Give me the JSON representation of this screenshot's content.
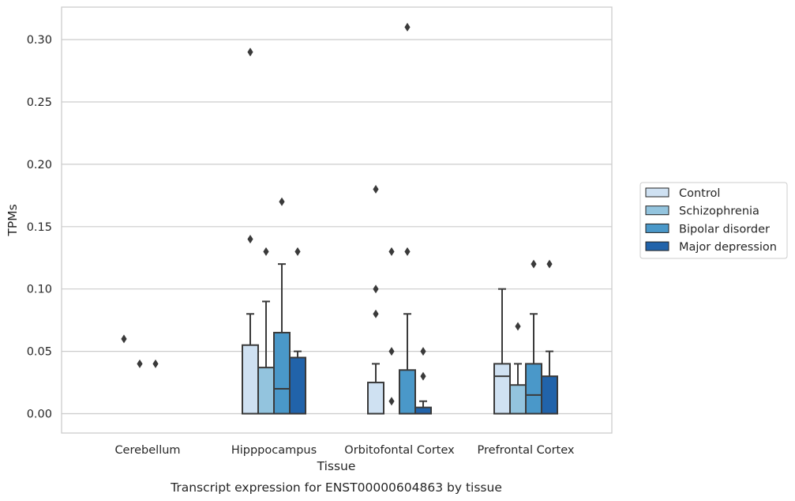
{
  "chart_data": {
    "type": "box",
    "caption": "Transcript expression for ENST00000604863 by tissue",
    "xlabel": "Tissue",
    "ylabel": "TPMs",
    "ylim": [
      -0.015,
      0.326
    ],
    "yticks": [
      0.0,
      0.05,
      0.1,
      0.15,
      0.2,
      0.25,
      0.3
    ],
    "ytick_labels": [
      "0.00",
      "0.05",
      "0.10",
      "0.15",
      "0.20",
      "0.25",
      "0.30"
    ],
    "grid": "horizontal",
    "legend_position": "right",
    "categories": [
      "Cerebellum",
      "Hipppocampus",
      "Orbitofontal Cortex",
      "Prefrontal Cortex"
    ],
    "series": [
      {
        "name": "Control",
        "color": "#cfe1f2",
        "boxes": [
          {
            "min": 0.0,
            "q1": 0.0,
            "median": 0.0,
            "q3": 0.0,
            "max": 0.0,
            "outliers": [
              0.06
            ]
          },
          {
            "min": 0.0,
            "q1": 0.0,
            "median": 0.0,
            "q3": 0.055,
            "max": 0.08,
            "outliers": [
              0.14,
              0.29
            ]
          },
          {
            "min": 0.0,
            "q1": 0.0,
            "median": 0.0,
            "q3": 0.025,
            "max": 0.04,
            "outliers": [
              0.08,
              0.1,
              0.18
            ]
          },
          {
            "min": 0.0,
            "q1": 0.0,
            "median": 0.03,
            "q3": 0.04,
            "max": 0.1,
            "outliers": []
          }
        ]
      },
      {
        "name": "Schizophrenia",
        "color": "#93c4de",
        "boxes": [
          {
            "min": 0.0,
            "q1": 0.0,
            "median": 0.0,
            "q3": 0.0,
            "max": 0.0,
            "outliers": [
              0.04
            ]
          },
          {
            "min": 0.0,
            "q1": 0.0,
            "median": 0.0,
            "q3": 0.037,
            "max": 0.09,
            "outliers": [
              0.13
            ]
          },
          {
            "min": 0.0,
            "q1": 0.0,
            "median": 0.0,
            "q3": 0.0,
            "max": 0.0,
            "outliers": [
              0.01,
              0.05,
              0.13
            ]
          },
          {
            "min": 0.0,
            "q1": 0.0,
            "median": 0.0,
            "q3": 0.023,
            "max": 0.04,
            "outliers": [
              0.07
            ]
          }
        ]
      },
      {
        "name": "Bipolar disorder",
        "color": "#4a98c9",
        "boxes": [
          {
            "min": 0.0,
            "q1": 0.0,
            "median": 0.0,
            "q3": 0.0,
            "max": 0.0,
            "outliers": [
              0.04
            ]
          },
          {
            "min": 0.0,
            "q1": 0.0,
            "median": 0.02,
            "q3": 0.065,
            "max": 0.12,
            "outliers": [
              0.17
            ]
          },
          {
            "min": 0.0,
            "q1": 0.0,
            "median": 0.0,
            "q3": 0.035,
            "max": 0.08,
            "outliers": [
              0.13,
              0.31
            ]
          },
          {
            "min": 0.0,
            "q1": 0.0,
            "median": 0.015,
            "q3": 0.04,
            "max": 0.08,
            "outliers": [
              0.12
            ]
          }
        ]
      },
      {
        "name": "Major depression",
        "color": "#2163aa",
        "boxes": [
          {
            "min": 0.0,
            "q1": 0.0,
            "median": 0.0,
            "q3": 0.0,
            "max": 0.0,
            "outliers": []
          },
          {
            "min": 0.0,
            "q1": 0.0,
            "median": 0.0,
            "q3": 0.045,
            "max": 0.05,
            "outliers": [
              0.13
            ]
          },
          {
            "min": 0.0,
            "q1": 0.0,
            "median": 0.0,
            "q3": 0.005,
            "max": 0.01,
            "outliers": [
              0.03,
              0.05
            ]
          },
          {
            "min": 0.0,
            "q1": 0.0,
            "median": 0.0,
            "q3": 0.03,
            "max": 0.05,
            "outliers": [
              0.12
            ]
          }
        ]
      }
    ]
  }
}
